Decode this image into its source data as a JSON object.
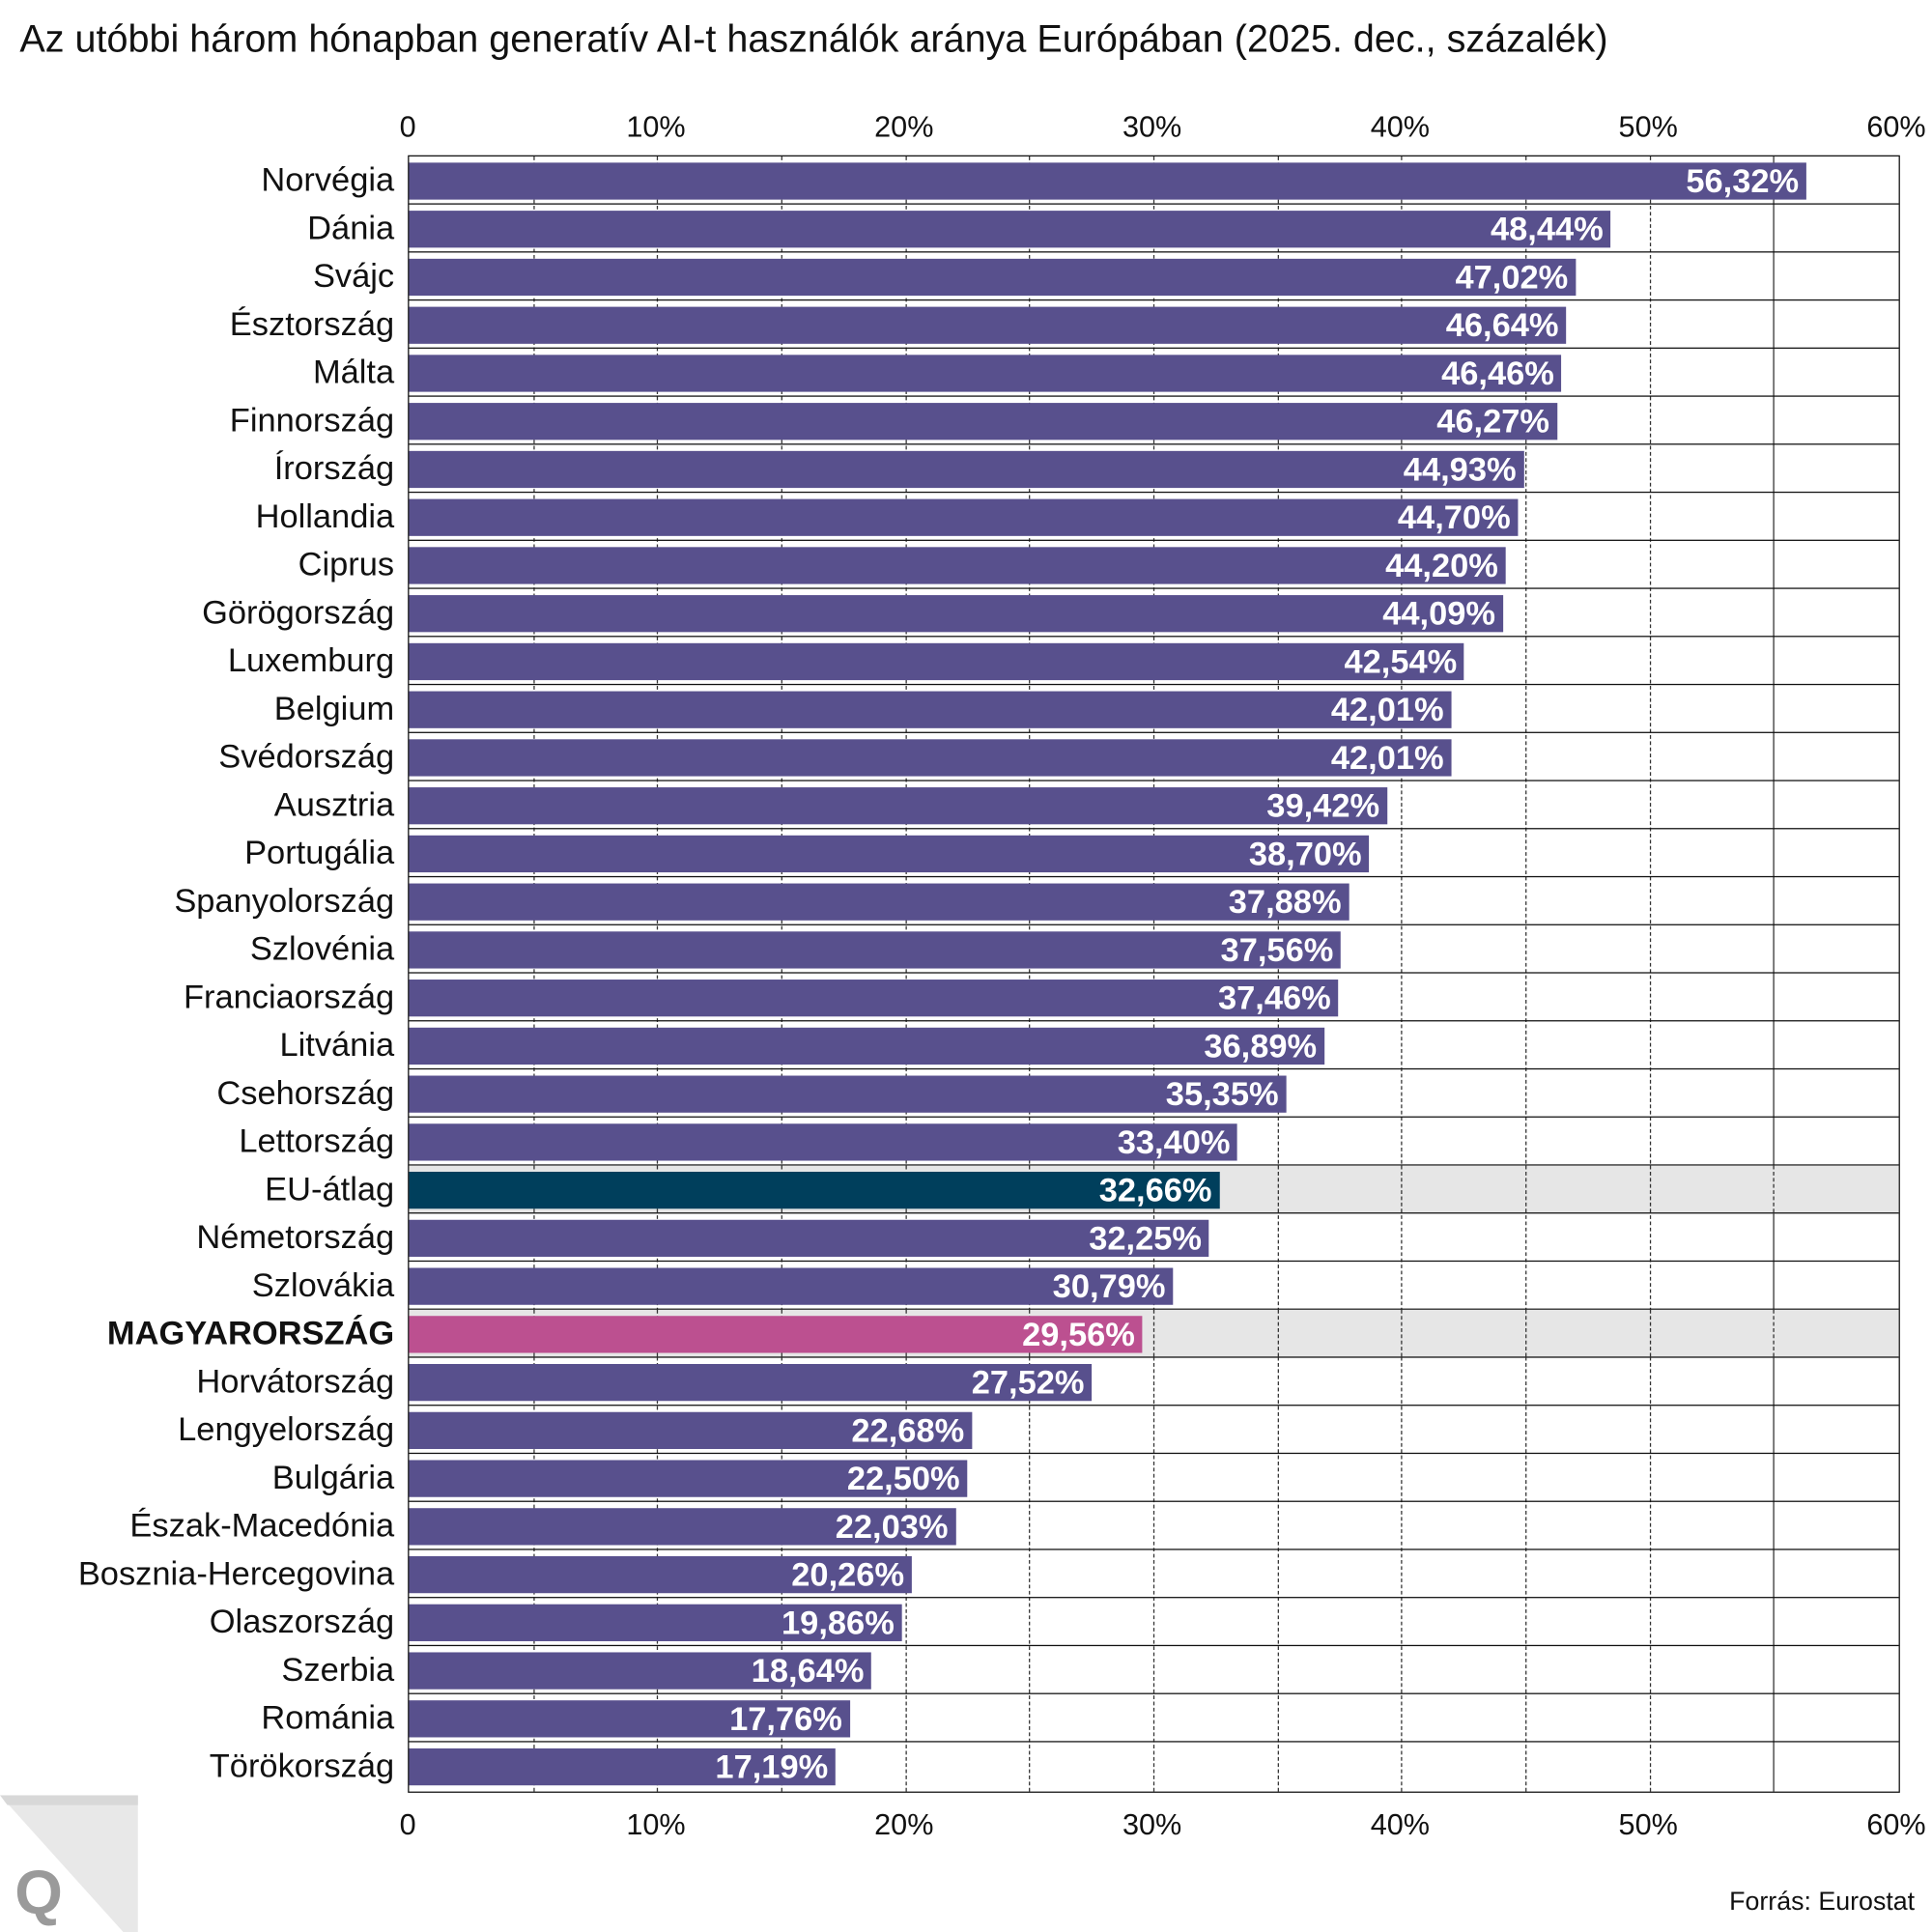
{
  "chart_data": {
    "type": "bar",
    "orientation": "horizontal",
    "title": "Az utóbbi három hónapban generatív AI-t használók aránya Európában (2025. dec., százalék)",
    "xlabel": "",
    "ylabel": "",
    "xlim": [
      0,
      60
    ],
    "grid": true,
    "tick_labels": [
      "0",
      "10%",
      "20%",
      "30%",
      "40%",
      "50%",
      "60%"
    ],
    "tick_values": [
      0,
      10,
      20,
      30,
      40,
      50,
      60
    ],
    "source": "Forrás: Eurostat",
    "colors": {
      "default": "#58508d",
      "eu": "#003f5c",
      "hungary": "#bc5090",
      "highlight_bg": "#e6e6e6"
    },
    "categories": [
      "Norvégia",
      "Dánia",
      "Svájc",
      "Észtország",
      "Málta",
      "Finnország",
      "Írország",
      "Hollandia",
      "Ciprus",
      "Görögország",
      "Luxemburg",
      "Belgium",
      "Svédország",
      "Ausztria",
      "Portugália",
      "Spanyolország",
      "Szlovénia",
      "Franciaország",
      "Litvánia",
      "Csehország",
      "Lettország",
      "EU-átlag",
      "Németország",
      "Szlovákia",
      "MAGYARORSZÁG",
      "Horvátország",
      "Lengyelország",
      "Bulgária",
      "Észak-Macedónia",
      "Bosznia-Hercegovina",
      "Olaszország",
      "Szerbia",
      "Románia",
      "Törökország"
    ],
    "values": [
      56.32,
      48.44,
      47.02,
      46.64,
      46.46,
      46.27,
      44.93,
      44.7,
      44.2,
      44.09,
      42.54,
      42.01,
      42.01,
      39.42,
      38.7,
      37.88,
      37.56,
      37.46,
      36.89,
      35.35,
      33.4,
      32.66,
      32.25,
      30.79,
      29.56,
      27.52,
      22.68,
      22.5,
      22.03,
      20.26,
      19.86,
      18.64,
      17.76,
      17.19
    ],
    "value_labels": [
      "56,32%",
      "48,44%",
      "47,02%",
      "46,64%",
      "46,46%",
      "46,27%",
      "44,93%",
      "44,70%",
      "44,20%",
      "44,09%",
      "42,54%",
      "42,01%",
      "42,01%",
      "39,42%",
      "38,70%",
      "37,88%",
      "37,56%",
      "37,46%",
      "36,89%",
      "35,35%",
      "33,40%",
      "32,66%",
      "32,25%",
      "30,79%",
      "29,56%",
      "27,52%",
      "22,68%",
      "22,50%",
      "22,03%",
      "20,26%",
      "19,86%",
      "18,64%",
      "17,76%",
      "17,19%"
    ],
    "highlight": {
      "EU-átlag": "eu",
      "MAGYARORSZÁG": "hungary"
    }
  },
  "logo_text": "Q"
}
